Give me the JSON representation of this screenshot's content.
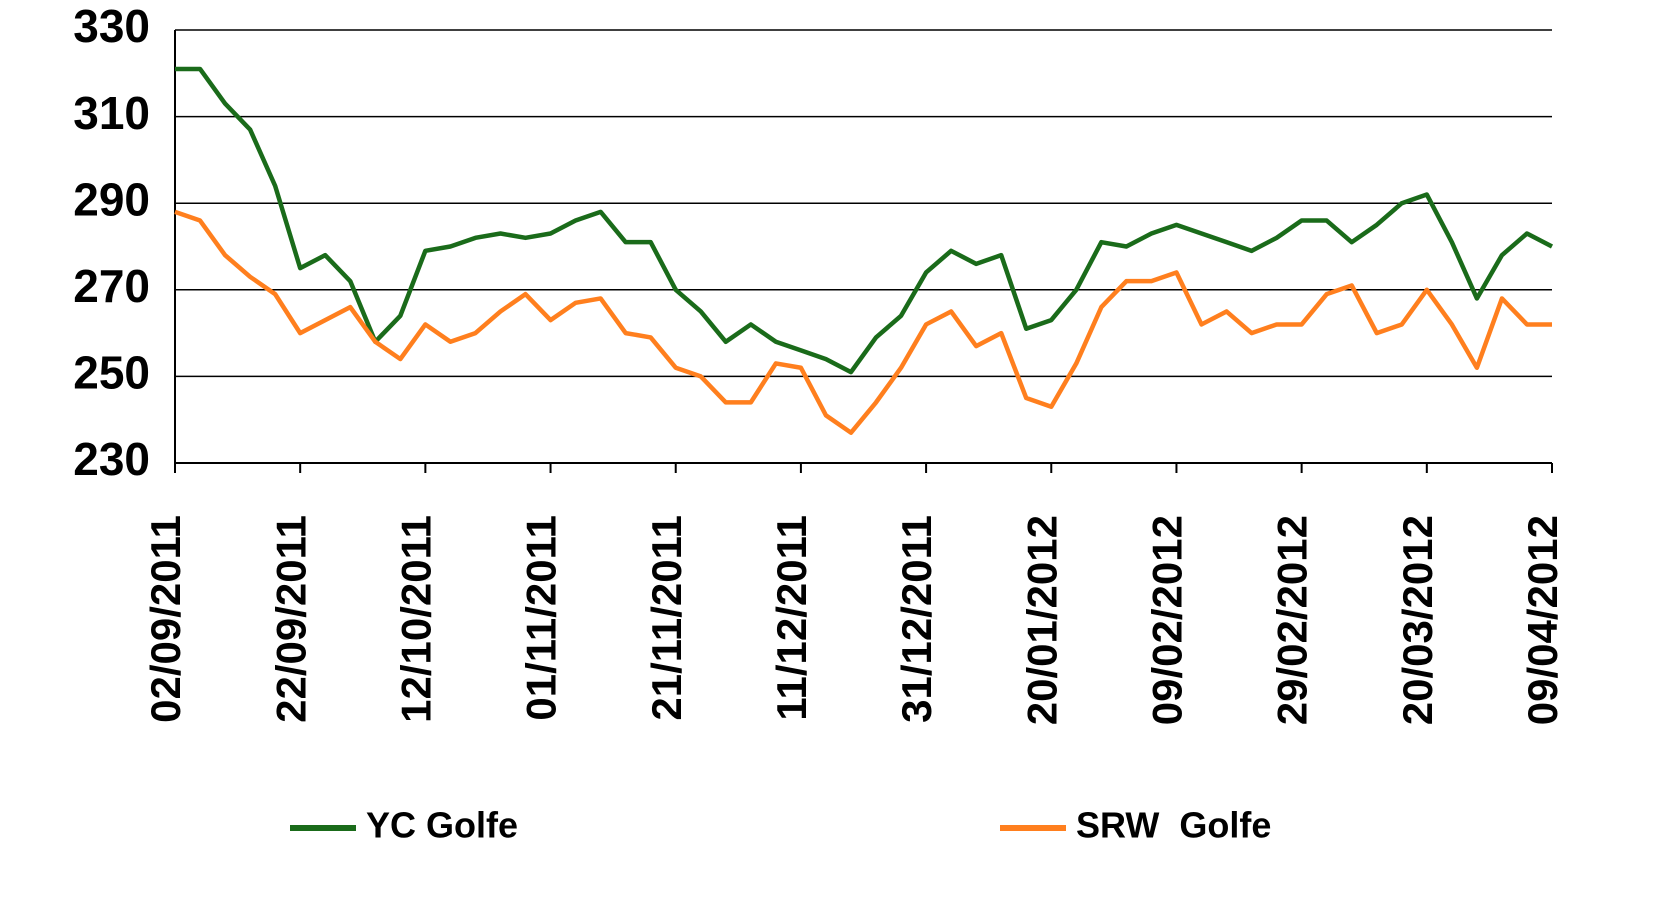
{
  "chart_data": {
    "type": "line",
    "x": [
      "02/09/2011",
      "06/09/2011",
      "10/09/2011",
      "14/09/2011",
      "18/09/2011",
      "22/09/2011",
      "26/09/2011",
      "30/09/2011",
      "04/10/2011",
      "08/10/2011",
      "12/10/2011",
      "16/10/2011",
      "20/10/2011",
      "24/10/2011",
      "28/10/2011",
      "01/11/2011",
      "05/11/2011",
      "09/11/2011",
      "13/11/2011",
      "17/11/2011",
      "21/11/2011",
      "25/11/2011",
      "29/11/2011",
      "03/12/2011",
      "07/12/2011",
      "11/12/2011",
      "15/12/2011",
      "19/12/2011",
      "23/12/2011",
      "27/12/2011",
      "31/12/2011",
      "04/01/2012",
      "08/01/2012",
      "12/01/2012",
      "16/01/2012",
      "20/01/2012",
      "24/01/2012",
      "28/01/2012",
      "01/02/2012",
      "05/02/2012",
      "09/02/2012",
      "13/02/2012",
      "17/02/2012",
      "21/02/2012",
      "25/02/2012",
      "29/02/2012",
      "04/03/2012",
      "08/03/2012",
      "12/03/2012",
      "16/03/2012",
      "20/03/2012",
      "24/03/2012",
      "28/03/2012",
      "01/04/2012",
      "05/04/2012",
      "09/04/2012"
    ],
    "series": [
      {
        "name": "YC Golfe",
        "color": "#1a6b1a",
        "values": [
          321,
          321,
          313,
          307,
          294,
          275,
          278,
          272,
          258,
          264,
          279,
          280,
          282,
          283,
          282,
          283,
          286,
          288,
          281,
          281,
          270,
          265,
          258,
          262,
          258,
          256,
          254,
          251,
          259,
          264,
          274,
          279,
          276,
          278,
          261,
          263,
          270,
          281,
          280,
          283,
          285,
          283,
          281,
          279,
          282,
          286,
          286,
          281,
          285,
          290,
          292,
          281,
          268,
          278,
          283,
          280
        ]
      },
      {
        "name": "SRW  Golfe",
        "color": "#ff7f1e",
        "values": [
          288,
          286,
          278,
          273,
          269,
          260,
          263,
          266,
          258,
          254,
          262,
          258,
          260,
          265,
          269,
          263,
          267,
          268,
          260,
          259,
          252,
          250,
          244,
          244,
          253,
          252,
          241,
          237,
          244,
          252,
          262,
          265,
          257,
          260,
          245,
          243,
          253,
          266,
          272,
          272,
          274,
          262,
          265,
          260,
          262,
          262,
          269,
          271,
          260,
          262,
          270,
          262,
          252,
          268,
          262,
          262
        ]
      }
    ],
    "xlim": [
      "02/09/2011",
      "09/04/2012"
    ],
    "xticks": [
      "02/09/2011",
      "22/09/2011",
      "12/10/2011",
      "01/11/2011",
      "21/11/2011",
      "11/12/2011",
      "31/12/2011",
      "20/01/2012",
      "09/02/2012",
      "29/02/2012",
      "20/03/2012",
      "09/04/2012"
    ],
    "ylim": [
      230,
      330
    ],
    "yticks": [
      230,
      250,
      270,
      290,
      310,
      330
    ],
    "grid": true,
    "legend": "bottom"
  }
}
